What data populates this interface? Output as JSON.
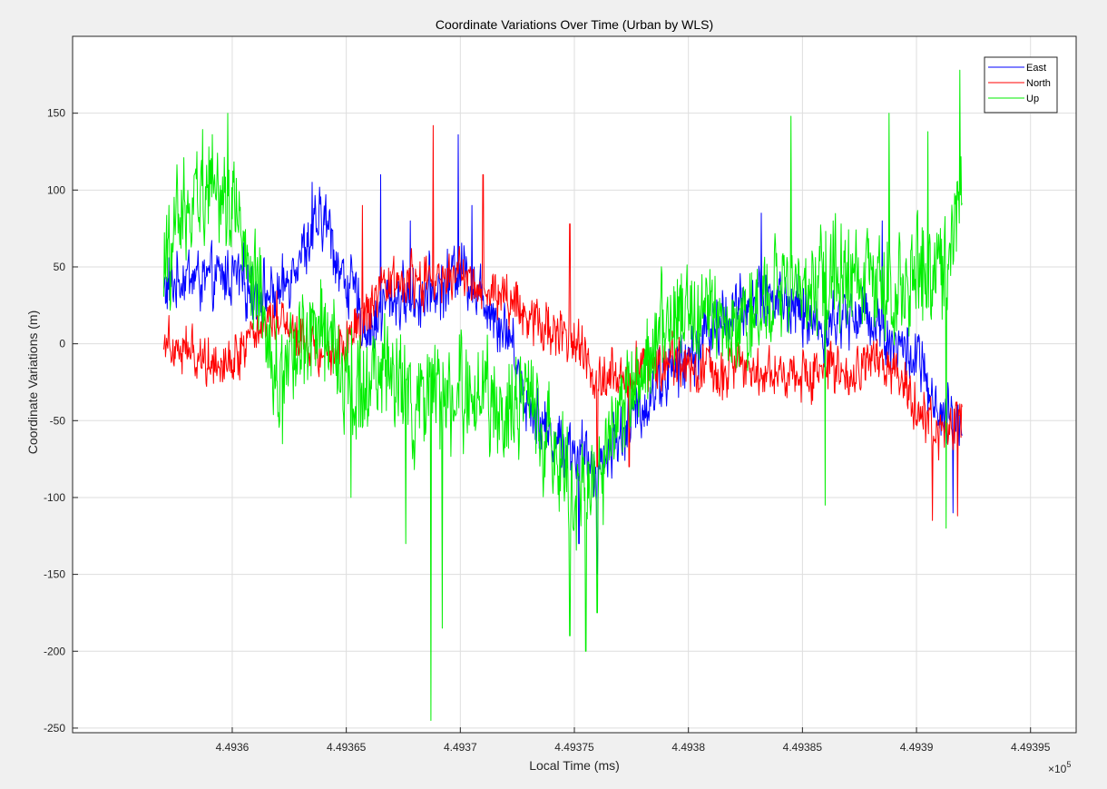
{
  "window": {
    "background": "#f0f0f0"
  },
  "chart_data": {
    "type": "line",
    "title": "Coordinate Variations Over Time (Urban by WLS)",
    "xlabel": "Local Time (ms)",
    "ylabel": "Coordinate Variations (m)",
    "x_exponent_label": "×10",
    "x_exponent_power": "5",
    "xlim": [
      449353,
      449397
    ],
    "ylim": [
      -253,
      200
    ],
    "x_ticks": [
      449360,
      449365,
      449370,
      449375,
      449380,
      449385,
      449390,
      449395
    ],
    "x_tick_labels": [
      "4.4936",
      "4.49365",
      "4.4937",
      "4.49375",
      "4.4938",
      "4.49385",
      "4.4939",
      "4.49395"
    ],
    "y_ticks": [
      -250,
      -200,
      -150,
      -100,
      -50,
      0,
      50,
      100,
      150
    ],
    "y_tick_labels": [
      "-250",
      "-200",
      "-150",
      "-100",
      "-50",
      "0",
      "50",
      "100",
      "150"
    ],
    "grid": true,
    "legend_position": "top-right",
    "x_start": 449357.0,
    "x_end": 449392.0,
    "series": [
      {
        "name": "East",
        "color": "#0000ff",
        "anchors": [
          [
            449357.0,
            35
          ],
          [
            449358.0,
            45
          ],
          [
            449359.0,
            40
          ],
          [
            449360.0,
            45
          ],
          [
            449361.0,
            35
          ],
          [
            449362.0,
            30
          ],
          [
            449363.0,
            60
          ],
          [
            449364.0,
            80
          ],
          [
            449365.0,
            40
          ],
          [
            449366.0,
            10
          ],
          [
            449367.0,
            30
          ],
          [
            449368.0,
            30
          ],
          [
            449369.0,
            35
          ],
          [
            449370.0,
            50
          ],
          [
            449371.0,
            30
          ],
          [
            449372.0,
            10
          ],
          [
            449373.0,
            -40
          ],
          [
            449374.0,
            -60
          ],
          [
            449375.0,
            -70
          ],
          [
            449376.0,
            -80
          ],
          [
            449377.0,
            -60
          ],
          [
            449378.0,
            -40
          ],
          [
            449379.0,
            -20
          ],
          [
            449380.0,
            -10
          ],
          [
            449381.0,
            10
          ],
          [
            449382.0,
            20
          ],
          [
            449383.0,
            30
          ],
          [
            449384.0,
            30
          ],
          [
            449385.0,
            20
          ],
          [
            449386.0,
            10
          ],
          [
            449387.0,
            20
          ],
          [
            449388.0,
            20
          ],
          [
            449389.0,
            0
          ],
          [
            449390.0,
            -10
          ],
          [
            449391.0,
            -50
          ],
          [
            449392.0,
            -50
          ]
        ],
        "spikes": [
          [
            449363.5,
            105
          ],
          [
            449366.5,
            110
          ],
          [
            449367.8,
            80
          ],
          [
            449369.9,
            136
          ],
          [
            449370.5,
            90
          ],
          [
            449375.2,
            -130
          ],
          [
            449376.0,
            -150
          ],
          [
            449383.2,
            85
          ],
          [
            449388.5,
            80
          ],
          [
            449391.6,
            -110
          ]
        ],
        "noise": 22,
        "points": 1400
      },
      {
        "name": "North",
        "color": "#ff0000",
        "anchors": [
          [
            449357.0,
            5
          ],
          [
            449358.0,
            -5
          ],
          [
            449359.0,
            -10
          ],
          [
            449360.0,
            -10
          ],
          [
            449361.0,
            10
          ],
          [
            449362.0,
            20
          ],
          [
            449363.0,
            5
          ],
          [
            449364.0,
            -5
          ],
          [
            449365.0,
            0
          ],
          [
            449366.0,
            20
          ],
          [
            449367.0,
            40
          ],
          [
            449368.0,
            40
          ],
          [
            449369.0,
            40
          ],
          [
            449370.0,
            45
          ],
          [
            449371.0,
            35
          ],
          [
            449372.0,
            30
          ],
          [
            449373.0,
            20
          ],
          [
            449374.0,
            10
          ],
          [
            449375.0,
            0
          ],
          [
            449376.0,
            -20
          ],
          [
            449377.0,
            -20
          ],
          [
            449378.0,
            -15
          ],
          [
            449379.0,
            -10
          ],
          [
            449380.0,
            -15
          ],
          [
            449381.0,
            -20
          ],
          [
            449382.0,
            -15
          ],
          [
            449383.0,
            -15
          ],
          [
            449384.0,
            -20
          ],
          [
            449385.0,
            -20
          ],
          [
            449386.0,
            -15
          ],
          [
            449387.0,
            -25
          ],
          [
            449388.0,
            -10
          ],
          [
            449389.0,
            -20
          ],
          [
            449390.0,
            -40
          ],
          [
            449391.0,
            -60
          ],
          [
            449392.0,
            -50
          ]
        ],
        "spikes": [
          [
            449365.7,
            90
          ],
          [
            449368.8,
            142
          ],
          [
            449371.0,
            110
          ],
          [
            449374.8,
            78
          ],
          [
            449376.0,
            -80
          ],
          [
            449377.4,
            -80
          ],
          [
            449390.7,
            -115
          ],
          [
            449391.8,
            -112
          ]
        ],
        "noise": 18,
        "points": 1400
      },
      {
        "name": "Up",
        "color": "#00ee00",
        "anchors": [
          [
            449357.0,
            50
          ],
          [
            449358.0,
            90
          ],
          [
            449359.0,
            110
          ],
          [
            449360.0,
            90
          ],
          [
            449361.0,
            30
          ],
          [
            449362.0,
            -20
          ],
          [
            449363.0,
            0
          ],
          [
            449364.0,
            10
          ],
          [
            449365.0,
            -20
          ],
          [
            449366.0,
            -30
          ],
          [
            449367.0,
            -20
          ],
          [
            449368.0,
            -40
          ],
          [
            449369.0,
            -40
          ],
          [
            449370.0,
            -30
          ],
          [
            449371.0,
            -40
          ],
          [
            449372.0,
            -40
          ],
          [
            449373.0,
            -40
          ],
          [
            449374.0,
            -60
          ],
          [
            449375.0,
            -100
          ],
          [
            449376.0,
            -90
          ],
          [
            449377.0,
            -40
          ],
          [
            449378.0,
            -10
          ],
          [
            449379.0,
            10
          ],
          [
            449380.0,
            20
          ],
          [
            449381.0,
            20
          ],
          [
            449382.0,
            10
          ],
          [
            449383.0,
            20
          ],
          [
            449384.0,
            40
          ],
          [
            449385.0,
            30
          ],
          [
            449386.0,
            40
          ],
          [
            449387.0,
            50
          ],
          [
            449388.0,
            40
          ],
          [
            449389.0,
            30
          ],
          [
            449390.0,
            50
          ],
          [
            449391.0,
            40
          ],
          [
            449392.0,
            100
          ]
        ],
        "spikes": [
          [
            449359.8,
            150
          ],
          [
            449362.2,
            -65
          ],
          [
            449365.2,
            -100
          ],
          [
            449367.6,
            -130
          ],
          [
            449368.7,
            -245
          ],
          [
            449369.2,
            -185
          ],
          [
            449374.8,
            -190
          ],
          [
            449375.5,
            -200
          ],
          [
            449376.0,
            -175
          ],
          [
            449384.5,
            148
          ],
          [
            449386.0,
            -105
          ],
          [
            449388.8,
            150
          ],
          [
            449390.5,
            138
          ],
          [
            449391.3,
            -120
          ],
          [
            449391.9,
            178
          ]
        ],
        "noise": 38,
        "points": 1400
      }
    ]
  }
}
